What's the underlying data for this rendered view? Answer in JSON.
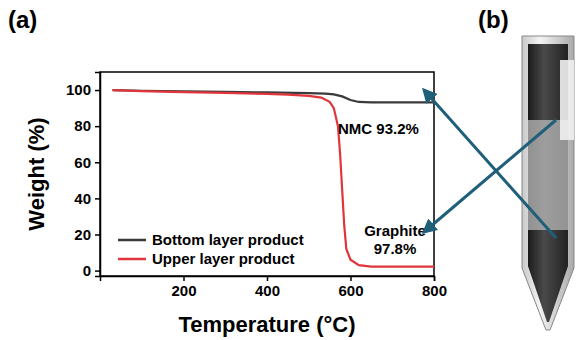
{
  "panel_labels": [
    "(a)",
    "(b)"
  ],
  "chart_data": {
    "type": "line",
    "x_label": "Temperature (°C)",
    "y_label": "Weight (%)",
    "xlim": [
      0,
      800
    ],
    "xticks": [
      200,
      400,
      600,
      800
    ],
    "ylim": [
      -3,
      110
    ],
    "yticks": [
      0,
      20,
      40,
      60,
      80,
      100
    ],
    "legend": "lower left",
    "series": [
      {
        "name": "Bottom layer product",
        "color": "#3a3a3a",
        "x": [
          30,
          100,
          200,
          300,
          400,
          500,
          540,
          560,
          580,
          600,
          620,
          650,
          700,
          800
        ],
        "values": [
          100,
          99.6,
          99.3,
          99.0,
          98.7,
          98.3,
          98.0,
          97.6,
          96.5,
          94.5,
          93.4,
          93.2,
          93.2,
          93.2
        ]
      },
      {
        "name": "Upper layer product",
        "color": "#e0353b",
        "x": [
          30,
          100,
          200,
          300,
          400,
          450,
          500,
          530,
          550,
          560,
          570,
          575,
          580,
          585,
          590,
          600,
          620,
          650,
          700,
          800
        ],
        "values": [
          100,
          99.4,
          98.9,
          98.4,
          97.9,
          97.5,
          96.8,
          95.8,
          93.5,
          90,
          80,
          65,
          45,
          25,
          12,
          6,
          3,
          2.2,
          2.2,
          2.2
        ]
      }
    ],
    "annotations": [
      [
        "NMC 93.2%"
      ],
      [
        "Graphite",
        "97.8%"
      ]
    ]
  }
}
